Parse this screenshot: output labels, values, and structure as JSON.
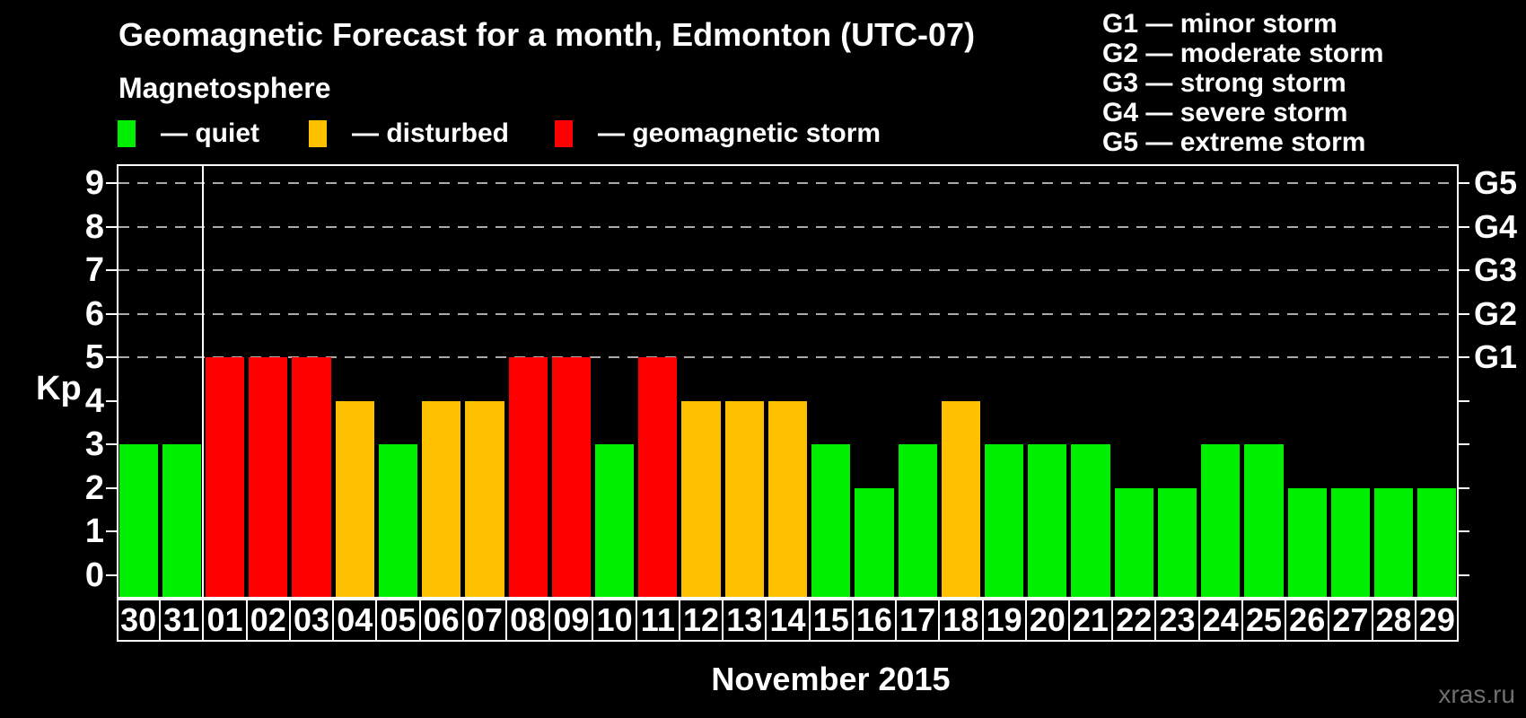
{
  "header": {
    "title": "Geomagnetic Forecast for a month, Edmonton (UTC-07)",
    "subtitle": "Magnetosphere"
  },
  "legend": {
    "items": [
      {
        "label": "— quiet",
        "status": "quiet",
        "color": "#00ee00"
      },
      {
        "label": "— disturbed",
        "status": "disturbed",
        "color": "#ffc000"
      },
      {
        "label": "— geomagnetic storm",
        "status": "storm",
        "color": "#ff0000"
      }
    ]
  },
  "g_legend": {
    "items": [
      "G1 — minor storm",
      "G2 — moderate storm",
      "G3 — strong storm",
      "G4 — severe storm",
      "G5 — extreme storm"
    ]
  },
  "axes": {
    "y_label": "Kp",
    "x_title": "November 2015"
  },
  "footer": {
    "watermark": "xras.ru"
  },
  "colors": {
    "background": "#000000",
    "axis": "#ffffff",
    "gridline": "#aaaaaa",
    "text": "#ffffff",
    "watermark": "#6f6f6f"
  },
  "chart_data": {
    "type": "bar",
    "title": "Geomagnetic Forecast for a month, Edmonton (UTC-07)",
    "xlabel": "November 2015",
    "ylabel": "Kp",
    "ylim": [
      -0.5,
      9.4
    ],
    "y_ticks": [
      0,
      1,
      2,
      3,
      4,
      5,
      6,
      7,
      8,
      9
    ],
    "gridlines_at_kp": [
      5,
      6,
      7,
      8,
      9
    ],
    "grid": "dashed horizontal at storm levels only",
    "right_axis": {
      "labels": [
        "G1",
        "G2",
        "G3",
        "G4",
        "G5"
      ],
      "at_kp": [
        5,
        6,
        7,
        8,
        9
      ]
    },
    "month_separator_after_index": 1,
    "categories": [
      "30",
      "31",
      "01",
      "02",
      "03",
      "04",
      "05",
      "06",
      "07",
      "08",
      "09",
      "10",
      "11",
      "12",
      "13",
      "14",
      "15",
      "16",
      "17",
      "18",
      "19",
      "20",
      "21",
      "22",
      "23",
      "24",
      "25",
      "26",
      "27",
      "28",
      "29"
    ],
    "values": [
      3,
      3,
      5,
      5,
      5,
      4,
      3,
      4,
      4,
      5,
      5,
      3,
      5,
      4,
      4,
      4,
      3,
      2,
      3,
      4,
      3,
      3,
      3,
      2,
      2,
      3,
      3,
      2,
      2,
      2,
      2
    ],
    "statuses": [
      "quiet",
      "quiet",
      "storm",
      "storm",
      "storm",
      "disturbed",
      "quiet",
      "disturbed",
      "disturbed",
      "storm",
      "storm",
      "quiet",
      "storm",
      "disturbed",
      "disturbed",
      "disturbed",
      "quiet",
      "quiet",
      "quiet",
      "disturbed",
      "quiet",
      "quiet",
      "quiet",
      "quiet",
      "quiet",
      "quiet",
      "quiet",
      "quiet",
      "quiet",
      "quiet",
      "quiet"
    ],
    "status_colors": {
      "quiet": "#00ee00",
      "disturbed": "#ffc000",
      "storm": "#ff0000"
    }
  }
}
